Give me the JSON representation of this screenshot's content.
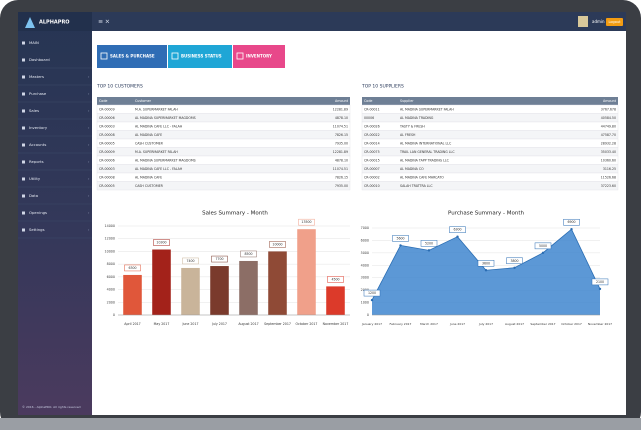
{
  "brand": "ALPHAPRO",
  "sidebar": [
    "MAIN",
    "Dashboard",
    "Masters",
    "Purchase",
    "Sales",
    "Inventory",
    "Accounts",
    "Reports",
    "Utility",
    "Data",
    "Openings",
    "Settings"
  ],
  "footer": "© 2016 - AlphaPRO. All rights reserved",
  "user": "admin",
  "logout": "Logout",
  "tabs": [
    "SALES & PURCHASE",
    "BUSINESS STATUS",
    "INVENTORY"
  ],
  "customers": {
    "title": "TOP 10 CUSTOMERS",
    "columns": [
      "Code",
      "Customer",
      "Amount"
    ],
    "rows": [
      [
        "CR-00009",
        "M.A. SUPERMARKET FALAH",
        "12281.89"
      ],
      [
        "CR-00006",
        "AL MADINA SUPERMARKET MAGDOMS",
        "4878.10"
      ],
      [
        "CR-00003",
        "AL MADINA CAFE LLC - FALAH",
        "11074.51"
      ],
      [
        "CR-00008",
        "AL MADINA CAFE",
        "7826.15"
      ],
      [
        "CR-00005",
        "CASH CUSTOMER",
        "7935.00"
      ],
      [
        "CR-00009",
        "M.A. SUPERMARKET FALAH",
        "12281.89"
      ],
      [
        "CR-00006",
        "AL MADINA SUPERMARKET MAGDOMS",
        "4878.10"
      ],
      [
        "CR-00003",
        "AL MADINA CAFE LLC - FALAH",
        "11074.51"
      ],
      [
        "CR-00008",
        "AL MADINA CAFE",
        "7826.15"
      ],
      [
        "CR-00005",
        "CASH CUSTOMER",
        "7935.00"
      ]
    ]
  },
  "suppliers": {
    "title": "TOP 10 SUPPLIERS",
    "columns": [
      "Code",
      "Supplier",
      "Amount"
    ],
    "rows": [
      [
        "CR-00011",
        "AL MADINA SUPERMARKET FALAH",
        "3767.678"
      ],
      [
        "00006",
        "AL MADINA TRADING",
        "40584.50"
      ],
      [
        "CR-00026",
        "TASTY & FRESH",
        "44749.80"
      ],
      [
        "CR-00022",
        "AL FRESH",
        "47587.70"
      ],
      [
        "CR-00014",
        "AL MADINA INTERNATIONAL LLC",
        "28932.28"
      ],
      [
        "CR-00075",
        "TRAIL LAN GENERAL TRADING LLC",
        "35033.40"
      ],
      [
        "CR-00015",
        "AL MADINA TAPP TRADING LLC",
        "10360.60"
      ],
      [
        "CR-00007",
        "AL MADINA CO",
        "3116.25"
      ],
      [
        "CR-00002",
        "AL MADINA CAFE MARCATO",
        "11526.68"
      ],
      [
        "CR-00010",
        "SALAH TRATTRA LLC",
        "37223.60"
      ]
    ]
  },
  "chart_data": [
    {
      "type": "bar",
      "title": "Sales Summary - Month",
      "categories": [
        "April 2017",
        "May 2017",
        "June 2017",
        "July 2017",
        "August 2017",
        "September 2017",
        "October 2017",
        "November 2017"
      ],
      "values": [
        6300,
        10300,
        7400,
        7700,
        8500,
        10000,
        13500,
        4500
      ],
      "colors": [
        "#e0573a",
        "#a3221a",
        "#c9b49a",
        "#7a3a2c",
        "#8c6e66",
        "#8f4a36",
        "#f0a08a",
        "#dc3a2a"
      ],
      "ylim": [
        0,
        14000
      ],
      "yticks": [
        0,
        2000,
        4000,
        6000,
        8000,
        10000,
        12000,
        14000
      ]
    },
    {
      "type": "area",
      "title": "Purchase Summary - Month",
      "categories": [
        "January 2017",
        "February 2017",
        "March 2017",
        "June 2017",
        "July 2017",
        "August 2017",
        "September 2017",
        "October 2017",
        "November 2017"
      ],
      "values": [
        1200,
        5600,
        5200,
        6300,
        3600,
        3800,
        5000,
        6900,
        2100
      ],
      "color": "#3f86cf",
      "ylim": [
        0,
        7000
      ],
      "yticks": [
        0,
        1000,
        2000,
        3000,
        4000,
        5000,
        6000,
        7000
      ]
    }
  ]
}
